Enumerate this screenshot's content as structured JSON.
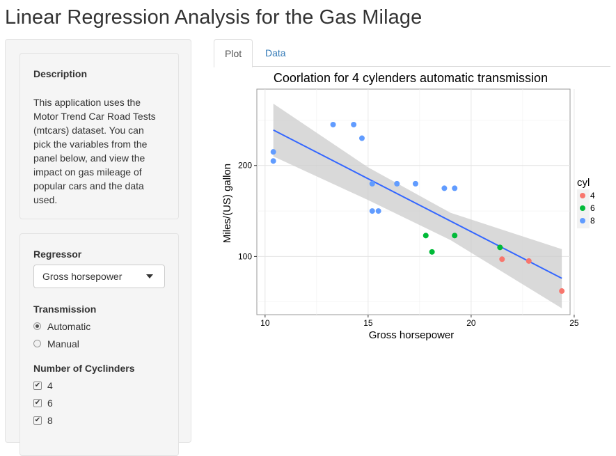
{
  "page": {
    "title": "Linear Regression Analysis for the Gas Milage"
  },
  "sidebar": {
    "description": {
      "heading": "Description",
      "text": "This application uses the Motor Trend Car Road Tests (mtcars) dataset. You can pick the variables from the panel below, and view the impact on gas mileage of popular cars and the data used."
    },
    "regressor": {
      "label": "Regressor",
      "selected": "Gross horsepower"
    },
    "transmission": {
      "label": "Transmission",
      "options": [
        {
          "label": "Automatic",
          "selected": true
        },
        {
          "label": "Manual",
          "selected": false
        }
      ]
    },
    "cylinders": {
      "label": "Number of Cyclinders",
      "options": [
        {
          "label": "4",
          "checked": true
        },
        {
          "label": "6",
          "checked": true
        },
        {
          "label": "8",
          "checked": true
        }
      ]
    }
  },
  "tabs": [
    {
      "label": "Plot",
      "active": true
    },
    {
      "label": "Data",
      "active": false
    }
  ],
  "chart_data": {
    "type": "scatter",
    "title": "Coorlation for 4 cylenders automatic transmission",
    "xlabel": "Gross horsepower",
    "ylabel": "Miles/(US) gallon",
    "xlim": [
      9.6,
      24.8
    ],
    "ylim": [
      36,
      284
    ],
    "xticks": [
      10,
      15,
      20,
      25
    ],
    "yticks": [
      100,
      200
    ],
    "grid": true,
    "legend": {
      "title": "cyl",
      "position": "right"
    },
    "series": [
      {
        "name": "4",
        "color": "#f8766d",
        "points": [
          [
            21.5,
            97
          ],
          [
            22.8,
            95
          ],
          [
            24.4,
            62
          ]
        ]
      },
      {
        "name": "6",
        "color": "#00ba38",
        "points": [
          [
            17.8,
            123
          ],
          [
            19.2,
            123
          ],
          [
            18.1,
            105
          ],
          [
            21.4,
            110
          ]
        ]
      },
      {
        "name": "8",
        "color": "#619cff",
        "points": [
          [
            10.4,
            215
          ],
          [
            10.4,
            205
          ],
          [
            13.3,
            245
          ],
          [
            14.3,
            245
          ],
          [
            14.7,
            230
          ],
          [
            15.2,
            180
          ],
          [
            16.4,
            180
          ],
          [
            17.3,
            180
          ],
          [
            18.7,
            175
          ],
          [
            19.2,
            175
          ],
          [
            15.2,
            150
          ],
          [
            15.5,
            150
          ]
        ]
      }
    ],
    "fit": {
      "color": "#3366ff",
      "band_color": "#cccccc",
      "line": [
        [
          10.4,
          239
        ],
        [
          24.4,
          76
        ]
      ],
      "band_upper": [
        [
          10.4,
          268
        ],
        [
          15,
          198
        ],
        [
          19,
          148
        ],
        [
          24.4,
          108
        ]
      ],
      "band_lower": [
        [
          10.4,
          210
        ],
        [
          15,
          162
        ],
        [
          19,
          118
        ],
        [
          24.4,
          43
        ]
      ]
    }
  }
}
